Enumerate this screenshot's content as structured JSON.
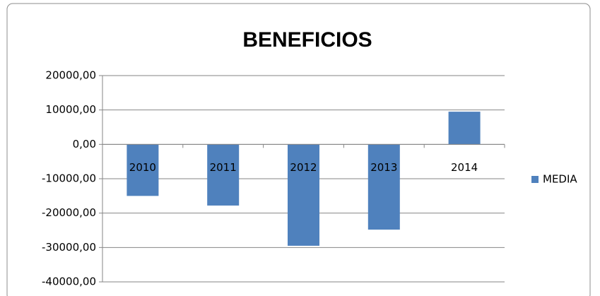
{
  "chart_data": {
    "type": "bar",
    "title": "BENEFICIOS",
    "categories": [
      "2010",
      "2011",
      "2012",
      "2013",
      "2014"
    ],
    "series": [
      {
        "name": "MEDIA",
        "color": "#4f81bd",
        "values": [
          -15000,
          -17800,
          -29500,
          -24800,
          9500
        ]
      }
    ],
    "ylim": [
      -40000,
      20000
    ],
    "yticks": [
      {
        "value": -40000,
        "label": "-40000,00"
      },
      {
        "value": -30000,
        "label": "-30000,00"
      },
      {
        "value": -20000,
        "label": "-20000,00"
      },
      {
        "value": -10000,
        "label": "-10000,00"
      },
      {
        "value": 0,
        "label": "0,00"
      },
      {
        "value": 10000,
        "label": "10000,00"
      },
      {
        "value": 20000,
        "label": "20000,00"
      }
    ],
    "grid": true,
    "legend": "right"
  }
}
